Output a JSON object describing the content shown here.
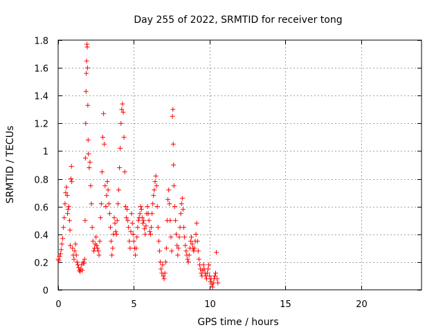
{
  "chart_data": {
    "type": "scatter",
    "title": "Day 255 of 2022, SRMTID for receiver tong",
    "xlabel": "GPS time / hours",
    "ylabel": "SRMTID / TECUs",
    "xlim": [
      0,
      24
    ],
    "ylim": [
      0,
      1.8
    ],
    "xticks": [
      0,
      5,
      10,
      15,
      20
    ],
    "xtick_labels": [
      "0",
      "5",
      "10",
      "15",
      "20"
    ],
    "yticks": [
      0,
      0.2,
      0.4,
      0.6,
      0.8,
      1,
      1.2,
      1.4,
      1.6,
      1.8
    ],
    "ytick_labels": [
      "0",
      "0.2",
      "0.4",
      "0.6",
      "0.8",
      "1",
      "1.2",
      "1.4",
      "1.6",
      "1.8"
    ],
    "grid": true,
    "marker": "+",
    "color": "#ff0000",
    "series": [
      {
        "name": "SRMTID",
        "points": [
          [
            0.0,
            0.22
          ],
          [
            0.05,
            0.21
          ],
          [
            0.1,
            0.24
          ],
          [
            0.15,
            0.26
          ],
          [
            0.2,
            0.29
          ],
          [
            0.25,
            0.33
          ],
          [
            0.3,
            0.37
          ],
          [
            0.35,
            0.45
          ],
          [
            0.4,
            0.52
          ],
          [
            0.45,
            0.62
          ],
          [
            0.5,
            0.7
          ],
          [
            0.55,
            0.74
          ],
          [
            0.6,
            0.68
          ],
          [
            0.62,
            0.55
          ],
          [
            0.65,
            0.58
          ],
          [
            0.7,
            0.6
          ],
          [
            0.75,
            0.5
          ],
          [
            0.78,
            0.43
          ],
          [
            0.8,
            0.32
          ],
          [
            0.85,
            0.8
          ],
          [
            0.88,
            0.89
          ],
          [
            0.9,
            0.78
          ],
          [
            0.95,
            0.3
          ],
          [
            1.0,
            0.25
          ],
          [
            1.05,
            0.22
          ],
          [
            1.1,
            0.28
          ],
          [
            1.15,
            0.33
          ],
          [
            1.2,
            0.25
          ],
          [
            1.25,
            0.2
          ],
          [
            1.3,
            0.18
          ],
          [
            1.35,
            0.16
          ],
          [
            1.4,
            0.14
          ],
          [
            1.45,
            0.13
          ],
          [
            1.5,
            0.15
          ],
          [
            1.55,
            0.18
          ],
          [
            1.6,
            0.14
          ],
          [
            1.65,
            0.2
          ],
          [
            1.7,
            0.19
          ],
          [
            1.75,
            0.22
          ],
          [
            1.78,
            0.5
          ],
          [
            1.8,
            0.95
          ],
          [
            1.82,
            1.2
          ],
          [
            1.84,
            1.43
          ],
          [
            1.86,
            1.56
          ],
          [
            1.88,
            1.65
          ],
          [
            1.9,
            1.77
          ],
          [
            1.92,
            1.75
          ],
          [
            1.94,
            1.6
          ],
          [
            1.96,
            1.33
          ],
          [
            1.98,
            1.08
          ],
          [
            2.0,
            0.98
          ],
          [
            2.05,
            0.88
          ],
          [
            2.1,
            0.92
          ],
          [
            2.15,
            0.75
          ],
          [
            2.2,
            0.62
          ],
          [
            2.25,
            0.45
          ],
          [
            2.3,
            0.35
          ],
          [
            2.35,
            0.28
          ],
          [
            2.4,
            0.3
          ],
          [
            2.45,
            0.33
          ],
          [
            2.5,
            0.38
          ],
          [
            2.55,
            0.32
          ],
          [
            2.6,
            0.3
          ],
          [
            2.65,
            0.28
          ],
          [
            2.7,
            0.25
          ],
          [
            2.75,
            0.35
          ],
          [
            2.8,
            0.52
          ],
          [
            2.85,
            0.62
          ],
          [
            2.9,
            0.85
          ],
          [
            2.95,
            1.1
          ],
          [
            3.0,
            1.27
          ],
          [
            3.05,
            1.05
          ],
          [
            3.1,
            0.75
          ],
          [
            3.15,
            0.6
          ],
          [
            3.2,
            0.68
          ],
          [
            3.25,
            0.78
          ],
          [
            3.3,
            0.72
          ],
          [
            3.35,
            0.62
          ],
          [
            3.4,
            0.55
          ],
          [
            3.45,
            0.45
          ],
          [
            3.5,
            0.35
          ],
          [
            3.55,
            0.25
          ],
          [
            3.6,
            0.3
          ],
          [
            3.65,
            0.4
          ],
          [
            3.7,
            0.52
          ],
          [
            3.75,
            0.48
          ],
          [
            3.8,
            0.42
          ],
          [
            3.85,
            0.4
          ],
          [
            3.9,
            0.5
          ],
          [
            3.95,
            0.62
          ],
          [
            4.0,
            0.72
          ],
          [
            4.05,
            0.88
          ],
          [
            4.1,
            1.02
          ],
          [
            4.15,
            1.2
          ],
          [
            4.2,
            1.3
          ],
          [
            4.25,
            1.34
          ],
          [
            4.3,
            1.28
          ],
          [
            4.35,
            1.1
          ],
          [
            4.4,
            0.85
          ],
          [
            4.45,
            0.6
          ],
          [
            4.5,
            0.52
          ],
          [
            4.55,
            0.58
          ],
          [
            4.6,
            0.5
          ],
          [
            4.65,
            0.45
          ],
          [
            4.7,
            0.35
          ],
          [
            4.75,
            0.3
          ],
          [
            4.8,
            0.42
          ],
          [
            4.85,
            0.55
          ],
          [
            4.9,
            0.48
          ],
          [
            4.95,
            0.4
          ],
          [
            5.0,
            0.35
          ],
          [
            5.05,
            0.3
          ],
          [
            5.1,
            0.25
          ],
          [
            5.15,
            0.3
          ],
          [
            5.2,
            0.38
          ],
          [
            5.25,
            0.45
          ],
          [
            5.3,
            0.5
          ],
          [
            5.35,
            0.52
          ],
          [
            5.4,
            0.55
          ],
          [
            5.45,
            0.6
          ],
          [
            5.5,
            0.58
          ],
          [
            5.55,
            0.52
          ],
          [
            5.6,
            0.48
          ],
          [
            5.65,
            0.5
          ],
          [
            5.7,
            0.44
          ],
          [
            5.75,
            0.4
          ],
          [
            5.8,
            0.46
          ],
          [
            5.85,
            0.55
          ],
          [
            5.9,
            0.6
          ],
          [
            5.95,
            0.55
          ],
          [
            6.0,
            0.5
          ],
          [
            6.05,
            0.42
          ],
          [
            6.1,
            0.4
          ],
          [
            6.15,
            0.45
          ],
          [
            6.2,
            0.55
          ],
          [
            6.25,
            0.62
          ],
          [
            6.3,
            0.68
          ],
          [
            6.35,
            0.72
          ],
          [
            6.4,
            0.78
          ],
          [
            6.45,
            0.82
          ],
          [
            6.5,
            0.75
          ],
          [
            6.55,
            0.6
          ],
          [
            6.6,
            0.45
          ],
          [
            6.65,
            0.35
          ],
          [
            6.7,
            0.28
          ],
          [
            6.75,
            0.2
          ],
          [
            6.8,
            0.15
          ],
          [
            6.85,
            0.12
          ],
          [
            6.9,
            0.18
          ],
          [
            6.95,
            0.1
          ],
          [
            7.0,
            0.08
          ],
          [
            7.05,
            0.12
          ],
          [
            7.1,
            0.2
          ],
          [
            7.15,
            0.3
          ],
          [
            7.2,
            0.5
          ],
          [
            7.25,
            0.65
          ],
          [
            7.3,
            0.72
          ],
          [
            7.35,
            0.62
          ],
          [
            7.4,
            0.5
          ],
          [
            7.45,
            0.38
          ],
          [
            7.5,
            0.28
          ],
          [
            7.55,
            1.25
          ],
          [
            7.58,
            1.3
          ],
          [
            7.6,
            1.05
          ],
          [
            7.62,
            0.9
          ],
          [
            7.65,
            0.75
          ],
          [
            7.7,
            0.6
          ],
          [
            7.75,
            0.5
          ],
          [
            7.8,
            0.4
          ],
          [
            7.85,
            0.32
          ],
          [
            7.9,
            0.25
          ],
          [
            7.95,
            0.3
          ],
          [
            8.0,
            0.38
          ],
          [
            8.05,
            0.45
          ],
          [
            8.1,
            0.55
          ],
          [
            8.15,
            0.62
          ],
          [
            8.2,
            0.66
          ],
          [
            8.25,
            0.58
          ],
          [
            8.3,
            0.45
          ],
          [
            8.35,
            0.38
          ],
          [
            8.4,
            0.32
          ],
          [
            8.45,
            0.28
          ],
          [
            8.5,
            0.25
          ],
          [
            8.55,
            0.22
          ],
          [
            8.6,
            0.2
          ],
          [
            8.65,
            0.25
          ],
          [
            8.7,
            0.3
          ],
          [
            8.75,
            0.35
          ],
          [
            8.8,
            0.38
          ],
          [
            8.85,
            0.33
          ],
          [
            8.9,
            0.3
          ],
          [
            8.95,
            0.28
          ],
          [
            9.0,
            0.3
          ],
          [
            9.05,
            0.35
          ],
          [
            9.1,
            0.4
          ],
          [
            9.15,
            0.48
          ],
          [
            9.2,
            0.35
          ],
          [
            9.25,
            0.28
          ],
          [
            9.3,
            0.22
          ],
          [
            9.35,
            0.18
          ],
          [
            9.4,
            0.15
          ],
          [
            9.45,
            0.12
          ],
          [
            9.5,
            0.1
          ],
          [
            9.55,
            0.14
          ],
          [
            9.6,
            0.18
          ],
          [
            9.65,
            0.15
          ],
          [
            9.7,
            0.12
          ],
          [
            9.75,
            0.1
          ],
          [
            9.8,
            0.08
          ],
          [
            9.85,
            0.12
          ],
          [
            9.9,
            0.15
          ],
          [
            9.95,
            0.18
          ],
          [
            10.0,
            0.1
          ],
          [
            10.05,
            0.06
          ],
          [
            10.1,
            0.08
          ],
          [
            10.15,
            0.04
          ],
          [
            10.2,
            0.02
          ],
          [
            10.25,
            0.05
          ],
          [
            10.3,
            0.08
          ],
          [
            10.35,
            0.1
          ],
          [
            10.4,
            0.12
          ],
          [
            10.45,
            0.27
          ],
          [
            10.5,
            0.08
          ],
          [
            10.55,
            0.05
          ]
        ]
      }
    ]
  }
}
